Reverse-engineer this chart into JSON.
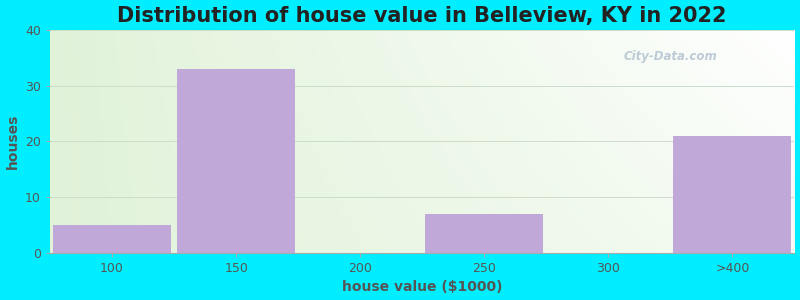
{
  "title": "Distribution of house value in Belleview, KY in 2022",
  "xlabel": "house value ($1000)",
  "ylabel": "houses",
  "categories": [
    "100",
    "150",
    "200",
    "250",
    "300",
    ">400"
  ],
  "values": [
    5,
    33,
    0,
    7,
    0,
    21
  ],
  "bar_color": "#c0a8d8",
  "ylim": [
    0,
    40
  ],
  "yticks": [
    0,
    10,
    20,
    30,
    40
  ],
  "background_outer": "#00eeff",
  "title_fontsize": 15,
  "axis_fontsize": 10,
  "tick_fontsize": 9,
  "bar_width": 0.95,
  "watermark": "City-Data.com"
}
